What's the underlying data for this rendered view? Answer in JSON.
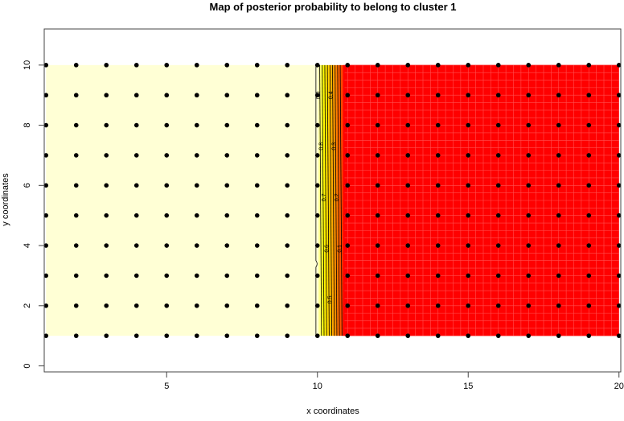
{
  "chart_data": {
    "type": "heatmap",
    "title": "Map of posterior probability to belong to cluster  1",
    "xlabel": "x coordinates",
    "ylabel": "y coordinates",
    "xlim": [
      0.94,
      20.06
    ],
    "ylim": [
      -0.2,
      11.2
    ],
    "x_ticks": [
      5,
      10,
      15,
      20
    ],
    "y_ticks": [
      0,
      2,
      4,
      6,
      8,
      10
    ],
    "grid": false,
    "points": {
      "x": [
        1,
        2,
        3,
        4,
        5,
        6,
        7,
        8,
        9,
        10,
        11,
        12,
        13,
        14,
        15,
        16,
        17,
        18,
        19,
        20
      ],
      "y": [
        1,
        2,
        3,
        4,
        5,
        6,
        7,
        8,
        9,
        10
      ]
    },
    "probability_by_x": {
      "x": [
        1,
        2,
        3,
        4,
        5,
        6,
        7,
        8,
        9,
        10,
        11,
        12,
        13,
        14,
        15,
        16,
        17,
        18,
        19,
        20
      ],
      "z": [
        1,
        1,
        1,
        1,
        1,
        1,
        1,
        1,
        1,
        1,
        0,
        0,
        0,
        0,
        0,
        0,
        0,
        0,
        0,
        0
      ]
    },
    "contour_levels": [
      0.9,
      0.8,
      0.7,
      0.6,
      0.5,
      0.4,
      0.3,
      0.2,
      0.1
    ],
    "contour_labels_shown": [
      "0.9",
      "0.8",
      "0.7",
      "0.6",
      "0.5",
      "0.4",
      "0.3",
      "0.2",
      "0.1"
    ],
    "colors": {
      "high": "#FFFFD5",
      "mid": "#FFFF00",
      "orange": "#FF8C00",
      "low": "#FF0000",
      "points": "#000000"
    }
  }
}
